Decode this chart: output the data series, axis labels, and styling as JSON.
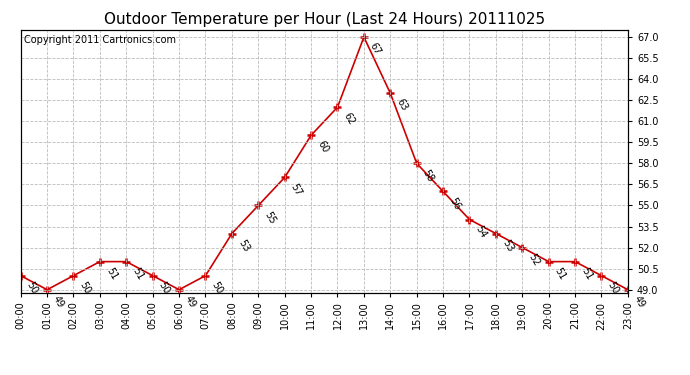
{
  "title": "Outdoor Temperature per Hour (Last 24 Hours) 20111025",
  "copyright_text": "Copyright 2011 Cartronics.com",
  "hours": [
    "00:00",
    "01:00",
    "02:00",
    "03:00",
    "04:00",
    "05:00",
    "06:00",
    "07:00",
    "08:00",
    "09:00",
    "10:00",
    "11:00",
    "12:00",
    "13:00",
    "14:00",
    "15:00",
    "16:00",
    "17:00",
    "18:00",
    "19:00",
    "20:00",
    "21:00",
    "22:00",
    "23:00"
  ],
  "temps": [
    50,
    49,
    50,
    51,
    51,
    50,
    49,
    50,
    53,
    55,
    57,
    60,
    62,
    67,
    63,
    58,
    56,
    54,
    53,
    52,
    51,
    51,
    50,
    49
  ],
  "line_color": "#cc0000",
  "marker_color": "#cc0000",
  "background_color": "#ffffff",
  "grid_color": "#bbbbbb",
  "title_fontsize": 11,
  "copyright_fontsize": 7,
  "annot_fontsize": 7,
  "tick_fontsize": 7,
  "ylim_min": 48.8,
  "ylim_max": 67.5,
  "yticks": [
    49.0,
    50.5,
    52.0,
    53.5,
    55.0,
    56.5,
    58.0,
    59.5,
    61.0,
    62.5,
    64.0,
    65.5,
    67.0
  ]
}
